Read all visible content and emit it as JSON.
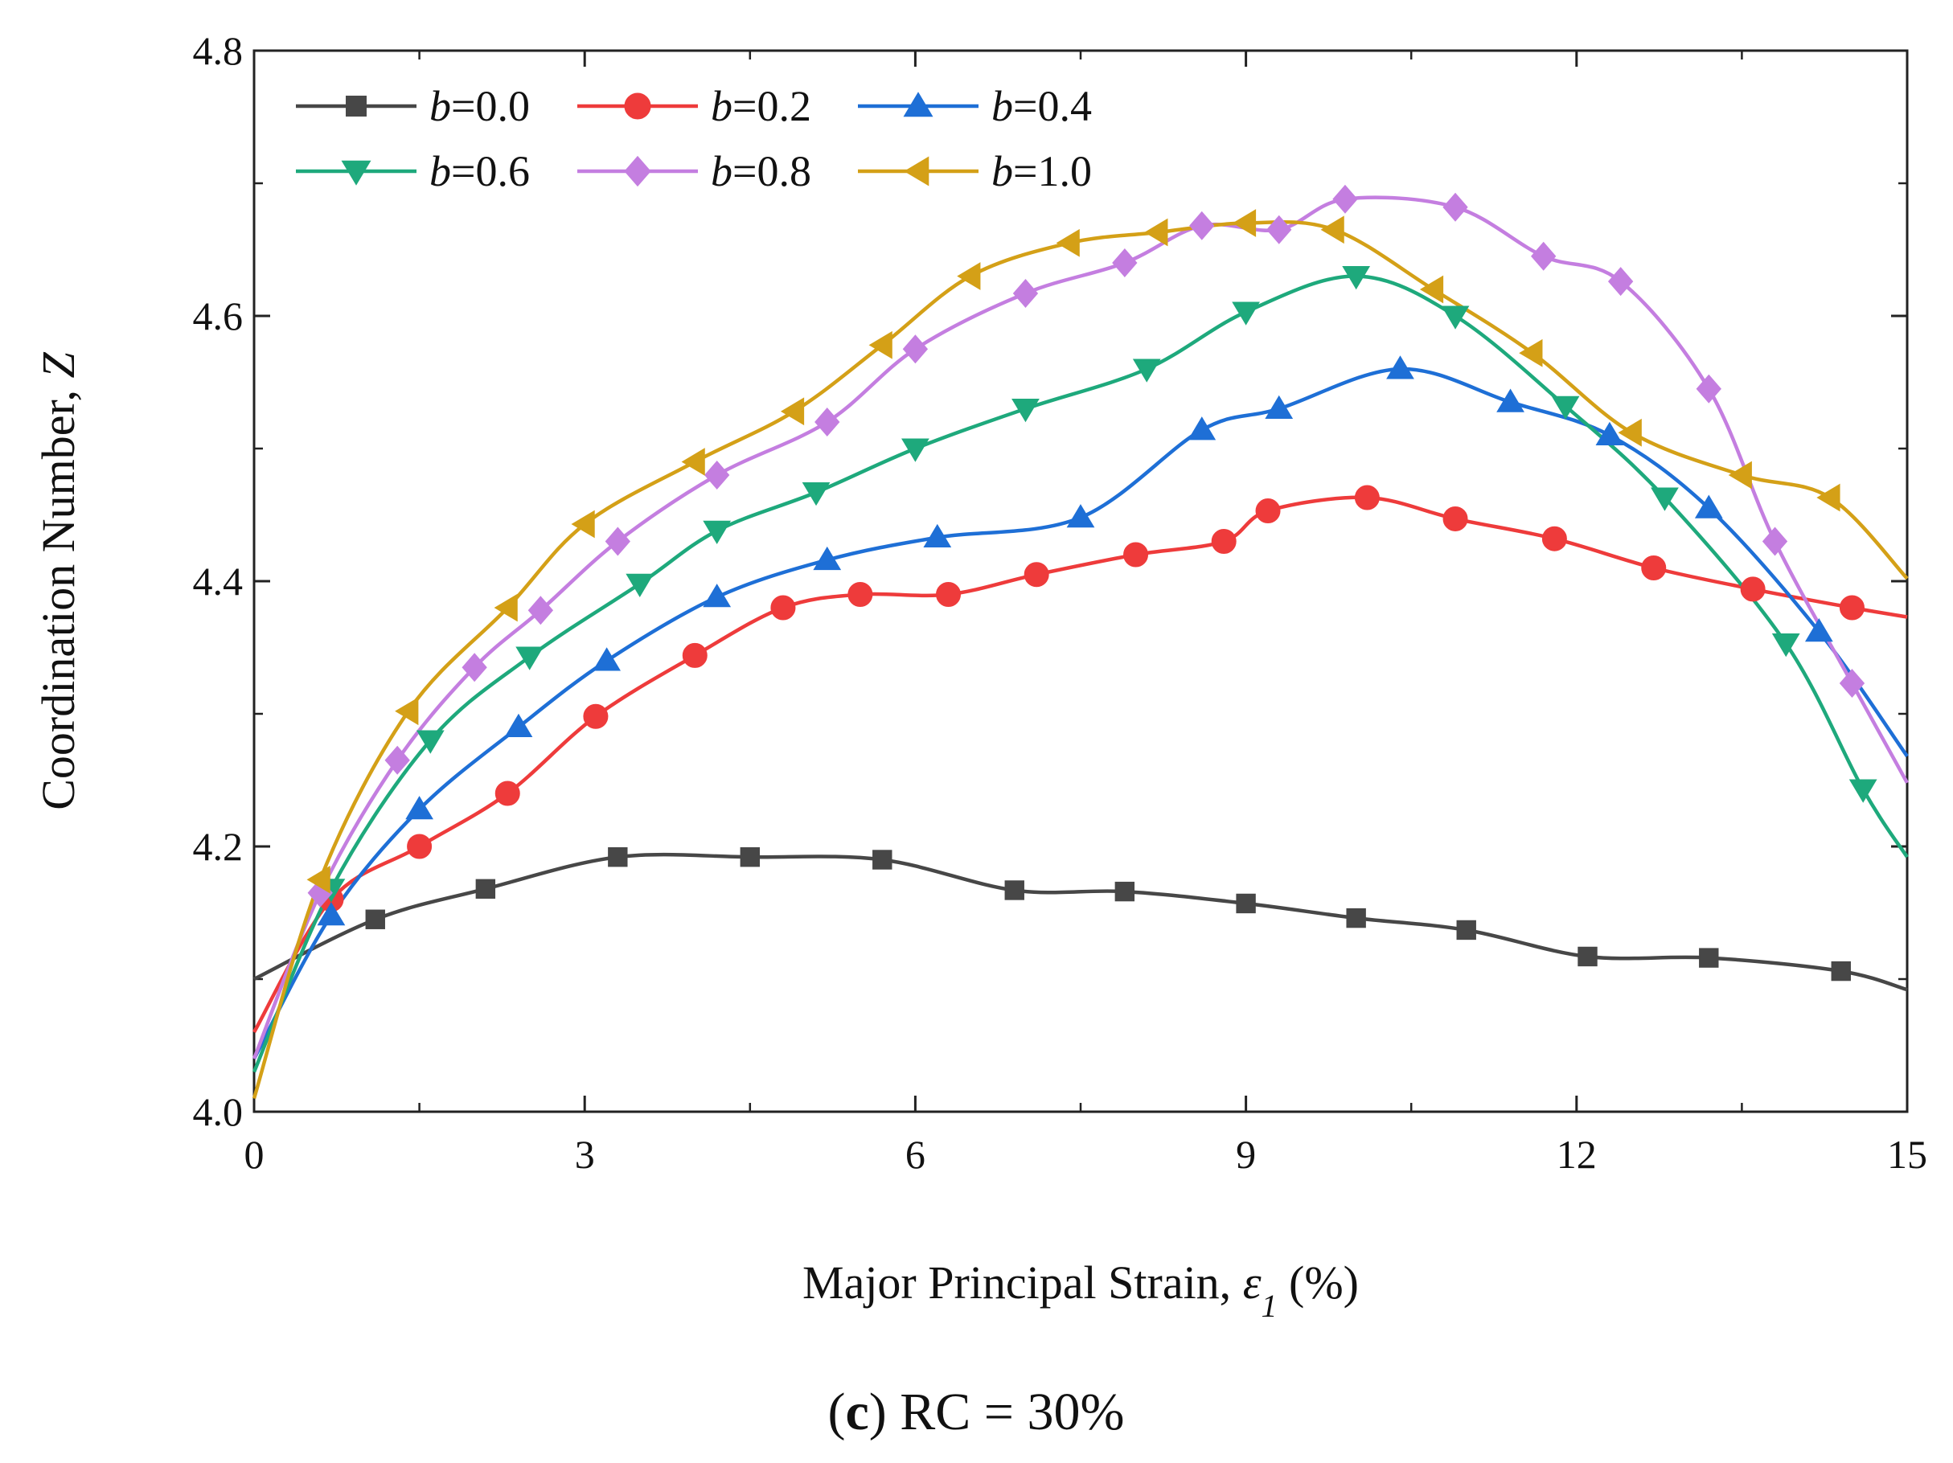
{
  "chart_data": {
    "type": "line",
    "title": "",
    "caption": {
      "letter": "c",
      "text": "RC = 30%"
    },
    "xlabel": {
      "prefix": "Major Principal Strain, ",
      "symbol": "ε",
      "subscript": "1",
      "suffix": " (%)"
    },
    "ylabel": {
      "prefix": "Coordination Number, ",
      "symbol": "Z"
    },
    "xlim": [
      0,
      15
    ],
    "ylim": [
      4.0,
      4.8
    ],
    "xticks": [
      "0",
      "3",
      "6",
      "9",
      "12",
      "15"
    ],
    "yticks": [
      "4.0",
      "4.2",
      "4.4",
      "4.6",
      "4.8"
    ],
    "grid": false,
    "legend_position": "top-left",
    "series": [
      {
        "name": "b=0.0",
        "label_var": "b",
        "label_val": "=0.0",
        "color": "#474747",
        "marker": "square",
        "points": [
          [
            0,
            4.1
          ],
          [
            1.1,
            4.145
          ],
          [
            2.1,
            4.168
          ],
          [
            3.3,
            4.192
          ],
          [
            4.5,
            4.192
          ],
          [
            5.7,
            4.19
          ],
          [
            6.9,
            4.167
          ],
          [
            7.9,
            4.166
          ],
          [
            9.0,
            4.157
          ],
          [
            10.0,
            4.146
          ],
          [
            11.0,
            4.137
          ],
          [
            12.1,
            4.117
          ],
          [
            13.2,
            4.116
          ],
          [
            14.4,
            4.106
          ],
          [
            15,
            4.092
          ]
        ]
      },
      {
        "name": "b=0.2",
        "label_var": "b",
        "label_val": "=0.2",
        "color": "#ee3b3b",
        "marker": "circle",
        "points": [
          [
            0,
            4.06
          ],
          [
            0.7,
            4.16
          ],
          [
            1.5,
            4.2
          ],
          [
            2.3,
            4.24
          ],
          [
            3.1,
            4.298
          ],
          [
            4.0,
            4.344
          ],
          [
            4.8,
            4.38
          ],
          [
            5.5,
            4.39
          ],
          [
            6.3,
            4.39
          ],
          [
            7.1,
            4.405
          ],
          [
            8.0,
            4.42
          ],
          [
            8.8,
            4.43
          ],
          [
            9.2,
            4.453
          ],
          [
            10.1,
            4.463
          ],
          [
            10.9,
            4.447
          ],
          [
            11.8,
            4.432
          ],
          [
            12.7,
            4.41
          ],
          [
            13.6,
            4.394
          ],
          [
            14.5,
            4.38
          ],
          [
            15,
            4.373
          ]
        ]
      },
      {
        "name": "b=0.4",
        "label_var": "b",
        "label_val": "=0.4",
        "color": "#1e6fd6",
        "marker": "triangle-up",
        "points": [
          [
            0,
            4.04
          ],
          [
            0.7,
            4.148
          ],
          [
            1.5,
            4.228
          ],
          [
            2.4,
            4.29
          ],
          [
            3.2,
            4.34
          ],
          [
            4.2,
            4.388
          ],
          [
            5.2,
            4.416
          ],
          [
            6.2,
            4.433
          ],
          [
            7.5,
            4.448
          ],
          [
            8.6,
            4.514
          ],
          [
            9.3,
            4.53
          ],
          [
            10.4,
            4.56
          ],
          [
            11.4,
            4.535
          ],
          [
            12.3,
            4.51
          ],
          [
            13.2,
            4.455
          ],
          [
            14.2,
            4.362
          ],
          [
            15,
            4.268
          ]
        ]
      },
      {
        "name": "b=0.6",
        "label_var": "b",
        "label_val": "=0.6",
        "color": "#1ea97c",
        "marker": "triangle-down",
        "points": [
          [
            0,
            4.03
          ],
          [
            0.7,
            4.168
          ],
          [
            1.6,
            4.28
          ],
          [
            2.5,
            4.343
          ],
          [
            3.5,
            4.398
          ],
          [
            4.2,
            4.438
          ],
          [
            5.1,
            4.467
          ],
          [
            6.0,
            4.5
          ],
          [
            7.0,
            4.53
          ],
          [
            8.1,
            4.56
          ],
          [
            9.0,
            4.603
          ],
          [
            10.0,
            4.63
          ],
          [
            10.9,
            4.6
          ],
          [
            11.9,
            4.532
          ],
          [
            12.8,
            4.463
          ],
          [
            13.9,
            4.353
          ],
          [
            14.6,
            4.243
          ],
          [
            15,
            4.192
          ]
        ]
      },
      {
        "name": "b=0.8",
        "label_var": "b",
        "label_val": "=0.8",
        "color": "#c47ee0",
        "marker": "diamond",
        "points": [
          [
            0,
            4.04
          ],
          [
            0.6,
            4.165
          ],
          [
            1.3,
            4.265
          ],
          [
            2.0,
            4.335
          ],
          [
            2.6,
            4.378
          ],
          [
            3.3,
            4.43
          ],
          [
            4.2,
            4.48
          ],
          [
            5.2,
            4.52
          ],
          [
            6.0,
            4.575
          ],
          [
            7.0,
            4.617
          ],
          [
            7.9,
            4.64
          ],
          [
            8.6,
            4.668
          ],
          [
            9.3,
            4.665
          ],
          [
            9.9,
            4.688
          ],
          [
            10.9,
            4.682
          ],
          [
            11.7,
            4.645
          ],
          [
            12.4,
            4.626
          ],
          [
            13.2,
            4.545
          ],
          [
            13.8,
            4.43
          ],
          [
            14.5,
            4.323
          ],
          [
            15,
            4.248
          ]
        ]
      },
      {
        "name": "b=1.0",
        "label_var": "b",
        "label_val": "=1.0",
        "color": "#d4a017",
        "marker": "triangle-left",
        "points": [
          [
            0,
            4.01
          ],
          [
            0.6,
            4.175
          ],
          [
            1.4,
            4.302
          ],
          [
            2.3,
            4.38
          ],
          [
            3.0,
            4.443
          ],
          [
            4.0,
            4.49
          ],
          [
            4.9,
            4.528
          ],
          [
            5.7,
            4.578
          ],
          [
            6.5,
            4.63
          ],
          [
            7.4,
            4.655
          ],
          [
            8.2,
            4.663
          ],
          [
            9.0,
            4.67
          ],
          [
            9.8,
            4.665
          ],
          [
            10.7,
            4.62
          ],
          [
            11.6,
            4.572
          ],
          [
            12.5,
            4.512
          ],
          [
            13.5,
            4.48
          ],
          [
            14.3,
            4.463
          ],
          [
            15,
            4.402
          ]
        ]
      }
    ]
  }
}
